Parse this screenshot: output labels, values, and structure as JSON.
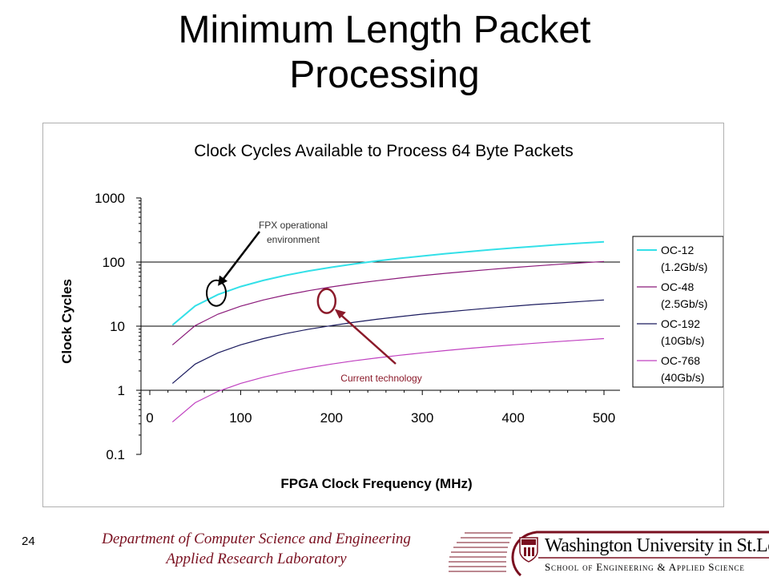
{
  "slide": {
    "title_line1": "Minimum Length Packet",
    "title_line2": "Processing",
    "page_number": "24",
    "footer_line1": "Department of Computer Science and Engineering",
    "footer_line2": "Applied Research Laboratory",
    "logo_university": "Washington University in St.Louis",
    "logo_school": "School of Engineering & Applied Science"
  },
  "colors": {
    "accent": "#7a1020",
    "oc12": "#33e0e8",
    "oc48": "#8b1a7a",
    "oc192": "#1a1a5e",
    "oc768": "#c040c0",
    "annotation_current": "#8b1a2a"
  },
  "chart_data": {
    "type": "line",
    "title": "Clock Cycles Available to Process 64 Byte Packets",
    "xlabel": "FPGA Clock Frequency (MHz)",
    "ylabel": "Clock Cycles",
    "yscale": "log",
    "xlim": [
      0,
      500
    ],
    "ylim": [
      0.1,
      1000
    ],
    "x_ticks": [
      "0",
      "100",
      "200",
      "300",
      "400",
      "500"
    ],
    "y_ticks": [
      "1000",
      "100",
      "10",
      "1",
      "0.1"
    ],
    "grid": "horizontal major lines at 1, 10, 100",
    "legend_placement": "right",
    "x": [
      25,
      50,
      75,
      100,
      125,
      150,
      175,
      200,
      225,
      250,
      275,
      300,
      325,
      350,
      375,
      400,
      425,
      450,
      475,
      500
    ],
    "series": [
      {
        "name": "OC-12 (1.2Gb/s)",
        "legend_line1": "OC-12",
        "legend_line2": "(1.2Gb/s)",
        "values": [
          10.4,
          20.7,
          31.1,
          41.5,
          51.8,
          62.2,
          72.6,
          82.9,
          93.3,
          104,
          114,
          124,
          135,
          145,
          156,
          166,
          176,
          187,
          197,
          207
        ]
      },
      {
        "name": "OC-48 (2.5Gb/s)",
        "legend_line1": "OC-48",
        "legend_line2": "(2.5Gb/s)",
        "values": [
          5.1,
          10.2,
          15.4,
          20.5,
          25.6,
          30.7,
          35.8,
          41.0,
          46.1,
          51.2,
          56.3,
          61.4,
          66.6,
          71.7,
          76.8,
          81.9,
          87.0,
          92.2,
          97.3,
          102
        ]
      },
      {
        "name": "OC-192 (10Gb/s)",
        "legend_line1": "OC-192",
        "legend_line2": "(10Gb/s)",
        "values": [
          1.28,
          2.56,
          3.84,
          5.12,
          6.4,
          7.68,
          8.96,
          10.2,
          11.5,
          12.8,
          14.1,
          15.4,
          16.6,
          17.9,
          19.2,
          20.5,
          21.8,
          23.0,
          24.3,
          25.6
        ]
      },
      {
        "name": "OC-768 (40Gb/s)",
        "legend_line1": "OC-768",
        "legend_line2": "(40Gb/s)",
        "values": [
          0.32,
          0.64,
          0.96,
          1.28,
          1.6,
          1.92,
          2.24,
          2.56,
          2.88,
          3.2,
          3.52,
          3.84,
          4.16,
          4.48,
          4.8,
          5.12,
          5.44,
          5.76,
          6.08,
          6.4
        ]
      }
    ],
    "annotations": [
      {
        "text_line1": "FPX operational",
        "text_line2": "environment",
        "points_to": {
          "x": 75,
          "y": 31
        }
      },
      {
        "text": "Current technology",
        "points_to": {
          "x": 200,
          "y": 12
        }
      }
    ]
  }
}
